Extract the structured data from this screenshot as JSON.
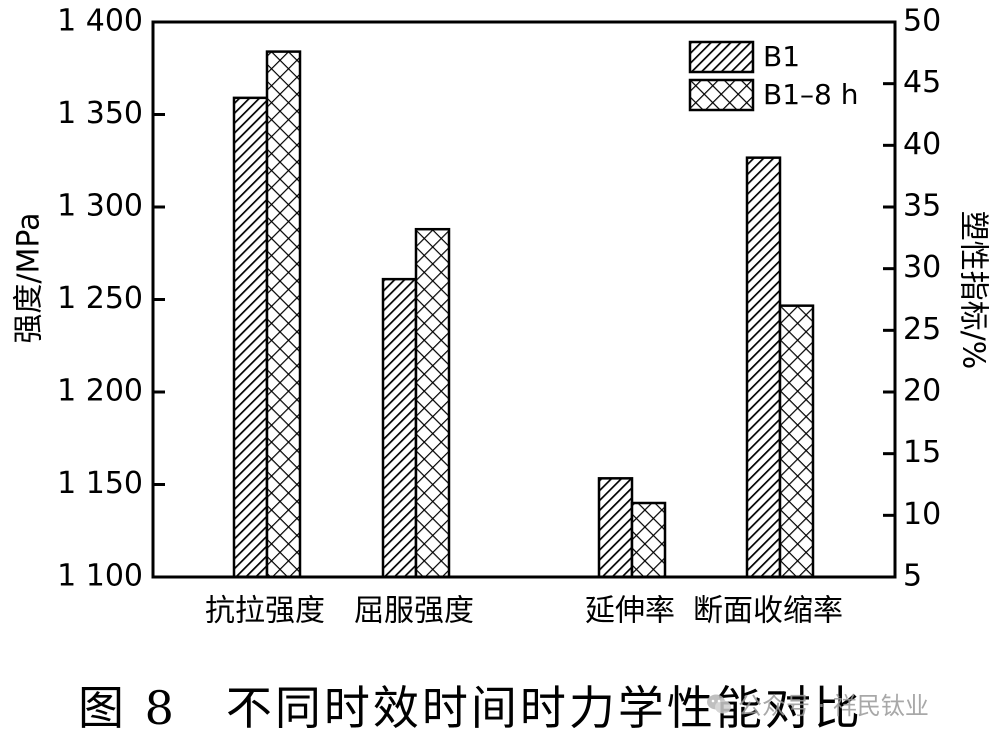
{
  "chart_data": {
    "type": "bar",
    "categories": [
      "抗拉强度",
      "屈服强度",
      "延伸率",
      "断面收缩率"
    ],
    "series": [
      {
        "name": "B1",
        "values": [
          1359,
          1261,
          13,
          39
        ],
        "axis": [
          "left",
          "left",
          "right",
          "right"
        ],
        "pattern": "diagonal-hatch"
      },
      {
        "name": "B1–8 h",
        "values": [
          1384,
          1288,
          11,
          27
        ],
        "axis": [
          "left",
          "left",
          "right",
          "right"
        ],
        "pattern": "cross-hatch"
      }
    ],
    "ylabel": "强度/MPa",
    "ylabel_right": "塑性指标/%",
    "ylim": [
      1100,
      1400
    ],
    "ylim_right": [
      5,
      50
    ],
    "yticks": [
      1100,
      1150,
      1200,
      1250,
      1300,
      1350,
      1400
    ],
    "yticks_right": [
      5,
      10,
      15,
      20,
      25,
      30,
      35,
      40,
      45,
      50
    ],
    "ytick_labels": [
      "1 100",
      "1 150",
      "1 200",
      "1 250",
      "1 300",
      "1 350",
      "1 400"
    ],
    "grid": false,
    "legend_position": "top-right"
  },
  "caption": "图 8　不同时效时间时力学性能对比",
  "watermark": "公众号 · 祥民钛业",
  "colors": {
    "ink": "#000000",
    "background": "#ffffff",
    "watermark": "#9a9a9a"
  },
  "icons": {
    "watermark": "wechat-icon"
  }
}
